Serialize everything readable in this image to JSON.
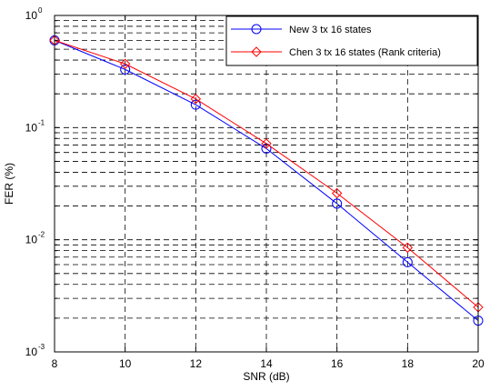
{
  "chart_data": {
    "type": "line",
    "title": "",
    "xlabel": "SNR (dB)",
    "ylabel": "FER (%)",
    "xlim": [
      8,
      20
    ],
    "ylim": [
      0.001,
      1
    ],
    "yscale": "log",
    "grid": true,
    "grid_style": "dashed",
    "legend_position": "top-right",
    "x_ticks": [
      "8",
      "10",
      "12",
      "14",
      "16",
      "18",
      "20"
    ],
    "y_ticks": [
      {
        "base": "10",
        "exp": "-3"
      },
      {
        "base": "10",
        "exp": "-2"
      },
      {
        "base": "10",
        "exp": "-1"
      },
      {
        "base": "10",
        "exp": "0"
      }
    ],
    "x": [
      8,
      10,
      12,
      14,
      16,
      18,
      20
    ],
    "series": [
      {
        "name": "New 3 tx 16 states",
        "color": "#0000ff",
        "marker": "circle",
        "values": [
          0.6,
          0.33,
          0.16,
          0.065,
          0.021,
          0.0063,
          0.0019
        ]
      },
      {
        "name": "Chen 3 tx 16 states (Rank criteria)",
        "color": "#ff0000",
        "marker": "diamond",
        "values": [
          0.6,
          0.37,
          0.18,
          0.072,
          0.026,
          0.0085,
          0.0025
        ]
      }
    ]
  }
}
